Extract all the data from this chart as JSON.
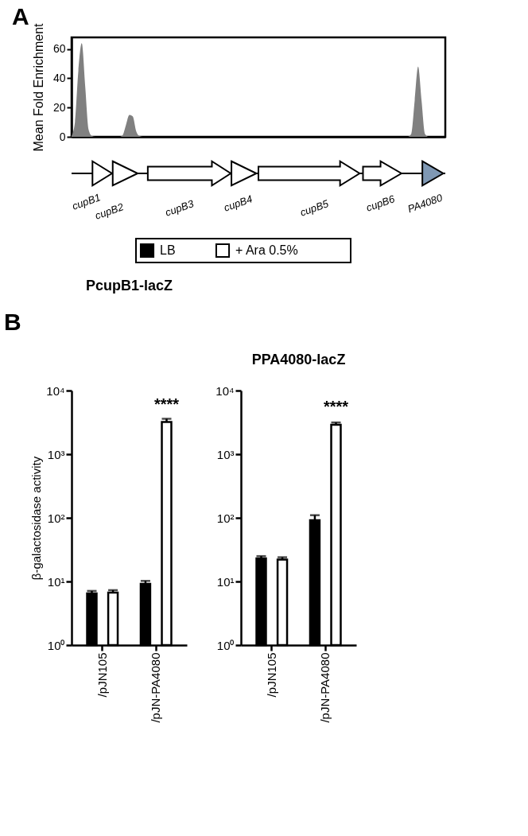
{
  "chart_data": [
    {
      "type": "area",
      "ylabel": "Mean Fold Enrichment",
      "categories": [
        null,
        null,
        null,
        null,
        null,
        null,
        null,
        null,
        null,
        null,
        null,
        null,
        null,
        null,
        null,
        null,
        null,
        null,
        null,
        null,
        null,
        null,
        null,
        null,
        null,
        null,
        null,
        null,
        null,
        null,
        null,
        null,
        null,
        null,
        null,
        null,
        null,
        null,
        null,
        null,
        null,
        null,
        null,
        null,
        null,
        null,
        null,
        null,
        null,
        null,
        null,
        null,
        null,
        null,
        null,
        null,
        null,
        null,
        null,
        null,
        null,
        null,
        null,
        null,
        null,
        null,
        null,
        null,
        null,
        null,
        null,
        null,
        null,
        null,
        null,
        null,
        null,
        null,
        null,
        null,
        null,
        null,
        null,
        null,
        null,
        null,
        null,
        null,
        null,
        null,
        null,
        null,
        null,
        null,
        null,
        null,
        null,
        null,
        null,
        null,
        null,
        null,
        null,
        null,
        null,
        null,
        null,
        null,
        null,
        null,
        null
      ],
      "values": [
        0.5,
        10,
        45,
        64,
        35,
        5,
        0.5,
        0,
        0,
        0,
        0,
        0,
        0,
        0,
        0,
        1,
        8,
        15,
        14,
        4,
        0.5,
        0,
        0,
        0,
        0,
        0,
        0,
        0,
        0,
        0,
        0,
        0,
        0,
        0,
        0,
        0,
        0,
        0,
        0,
        0,
        0,
        0,
        0,
        0,
        0,
        0,
        0,
        0,
        0,
        0,
        0,
        0,
        0,
        0,
        0,
        0,
        0,
        0,
        0,
        0,
        0,
        0,
        0,
        0,
        0,
        0,
        0,
        0,
        0,
        0,
        0,
        0,
        0,
        0,
        0,
        0,
        0,
        0,
        0,
        0,
        0,
        0,
        0,
        0,
        0,
        0,
        0,
        0,
        0,
        0,
        0,
        0,
        0,
        0,
        0,
        0,
        0,
        0,
        0,
        0,
        2,
        25,
        48,
        25,
        2,
        0,
        0,
        0,
        0,
        0,
        0
      ],
      "color": "#808080",
      "ylim": [
        0,
        68
      ],
      "yticks": [
        0,
        20,
        40,
        60
      ],
      "grid": false,
      "tick_labels": "y",
      "annotations": [
        "A",
        "cupB1",
        "cupB2",
        "cupB3",
        "cupB4",
        "cupB5",
        "cupB6",
        "PA4080"
      ]
    },
    {
      "type": "bar",
      "title": "PcupB1-lacZ",
      "ylabel": "β-galactosidase activity",
      "categories": [
        "/pJN105",
        "/pJN-PA4080"
      ],
      "series": [
        {
          "name": "LB",
          "color": "#000000",
          "values": [
            6.5,
            9.2
          ],
          "errors": [
            0.6,
            1.0
          ]
        },
        {
          "name": "+ Ara 0.5%",
          "color": "#ffffff",
          "values": [
            6.7,
            3200
          ],
          "errors": [
            0.6,
            400
          ]
        }
      ],
      "log": true,
      "ylim": [
        1,
        10000
      ],
      "yticks": [
        {
          "value": 1,
          "label": "10⁰"
        },
        {
          "value": 10,
          "label": "10¹"
        },
        {
          "value": 100,
          "label": "10²"
        },
        {
          "value": 1000,
          "label": "10³"
        },
        {
          "value": 10000,
          "label": "10⁴"
        }
      ],
      "legend": "top",
      "grid": false,
      "annotations": [
        "B",
        "****"
      ]
    },
    {
      "type": "bar",
      "title": "PPA4080-lacZ",
      "categories": [
        "/pJN105",
        "/pJN-PA4080"
      ],
      "series": [
        {
          "name": "LB",
          "color": "#000000",
          "values": [
            23,
            92
          ],
          "errors": [
            2,
            18
          ]
        },
        {
          "name": "+ Ara 0.5%",
          "color": "#ffffff",
          "values": [
            22,
            2900
          ],
          "errors": [
            2,
            250
          ]
        }
      ],
      "log": true,
      "ylim": [
        1,
        10000
      ],
      "yticks": [
        {
          "value": 1,
          "label": "10⁰"
        },
        {
          "value": 10,
          "label": "10¹"
        },
        {
          "value": 100,
          "label": "10²"
        },
        {
          "value": 1000,
          "label": "10³"
        },
        {
          "value": 10000,
          "label": "10⁴"
        }
      ],
      "legend": "top",
      "grid": false,
      "annotations": [
        "****"
      ]
    }
  ]
}
